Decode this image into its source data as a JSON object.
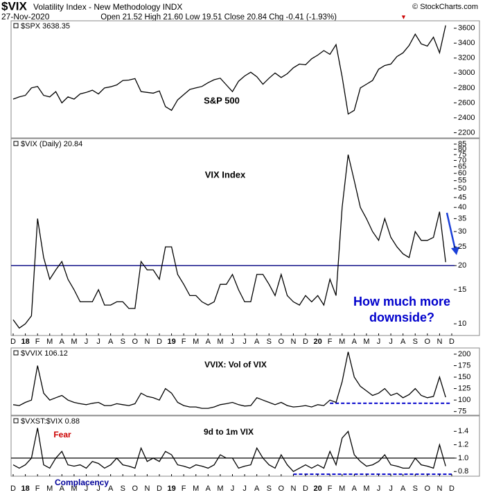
{
  "header": {
    "symbol": "$VIX",
    "name": "Volatility Index - New Methodology INDX",
    "date": "27-Nov-2020",
    "quote": "Open 21.52  High 21.60  Low 19.51  Close 20.84  Chg -0.41 (-1.93%)",
    "source": "© StockCharts.com"
  },
  "chart_data": [
    {
      "type": "line",
      "title": "$SPX 3638.35",
      "color": "#000000",
      "log": false,
      "show_x_labels": false,
      "annotations": [
        {
          "text": "S&P 500",
          "color": "#000000"
        }
      ],
      "categories": [
        "D",
        null,
        "18",
        null,
        "F",
        null,
        "M",
        null,
        "A",
        null,
        "M",
        null,
        "J",
        null,
        "J",
        null,
        "A",
        null,
        "S",
        null,
        "O",
        null,
        "N",
        null,
        "D",
        null,
        "19",
        null,
        "F",
        null,
        "M",
        null,
        "A",
        null,
        "M",
        null,
        "J",
        null,
        "J",
        null,
        "A",
        null,
        "S",
        null,
        "O",
        null,
        "N",
        null,
        "D",
        null,
        "20",
        null,
        "F",
        null,
        "M",
        null,
        "A",
        null,
        "M",
        null,
        "J",
        null,
        "J",
        null,
        "A",
        null,
        "S",
        null,
        "O",
        null,
        "N",
        null,
        "D"
      ],
      "values": [
        2650,
        2680,
        2700,
        2800,
        2820,
        2700,
        2680,
        2750,
        2600,
        2680,
        2650,
        2720,
        2740,
        2770,
        2720,
        2800,
        2815,
        2840,
        2900,
        2905,
        2925,
        2750,
        2740,
        2730,
        2760,
        2550,
        2500,
        2640,
        2710,
        2780,
        2800,
        2820,
        2870,
        2910,
        2930,
        2840,
        2750,
        2890,
        2960,
        3010,
        2950,
        2850,
        2930,
        3000,
        2940,
        2990,
        3070,
        3120,
        3110,
        3190,
        3240,
        3300,
        3250,
        3380,
        2950,
        2450,
        2500,
        2800,
        2850,
        2900,
        3050,
        3100,
        3120,
        3220,
        3270,
        3370,
        3520,
        3390,
        3360,
        3480,
        3270,
        3638.35,
        null
      ],
      "ylim": [
        2130,
        3690
      ],
      "yticks": [
        2200,
        2400,
        2600,
        2800,
        3000,
        3200,
        3400,
        3600
      ],
      "reference_lines": []
    },
    {
      "type": "line",
      "title": "$VIX (Daily) 20.84",
      "color": "#000000",
      "log": true,
      "show_x_labels": true,
      "annotations": [
        {
          "text": "VIX Index",
          "color": "#000000"
        },
        {
          "text": "How much more",
          "color": "#0000cc"
        },
        {
          "text": "downside?",
          "color": "#0000cc"
        }
      ],
      "categories": [
        "D",
        null,
        "18",
        null,
        "F",
        null,
        "M",
        null,
        "A",
        null,
        "M",
        null,
        "J",
        null,
        "J",
        null,
        "A",
        null,
        "S",
        null,
        "O",
        null,
        "N",
        null,
        "D",
        null,
        "19",
        null,
        "F",
        null,
        "M",
        null,
        "A",
        null,
        "M",
        null,
        "J",
        null,
        "J",
        null,
        "A",
        null,
        "S",
        null,
        "O",
        null,
        "N",
        null,
        "D",
        null,
        "20",
        null,
        "F",
        null,
        "M",
        null,
        "A",
        null,
        "M",
        null,
        "J",
        null,
        "J",
        null,
        "A",
        null,
        "S",
        null,
        "O",
        null,
        "N",
        null,
        "D"
      ],
      "values": [
        10.5,
        9.5,
        10,
        11,
        35,
        22,
        17,
        19,
        21,
        17,
        15,
        13,
        13,
        13,
        15,
        12.5,
        12.5,
        13,
        13,
        12,
        12,
        21,
        19,
        19,
        17,
        25,
        25,
        18,
        16,
        14,
        14,
        13,
        12.5,
        13,
        16,
        16,
        18,
        15,
        13,
        13,
        18,
        18,
        16,
        14,
        18,
        14,
        13,
        12.5,
        14,
        13,
        14,
        12.5,
        17,
        14,
        40,
        75,
        55,
        40,
        35,
        30,
        27,
        35,
        28,
        25,
        23,
        22,
        30,
        27,
        27,
        28,
        38,
        20.84,
        null
      ],
      "ylim": [
        8.7,
        90
      ],
      "yticks": [
        10,
        15,
        20,
        25,
        30,
        35,
        40,
        45,
        50,
        55,
        60,
        65,
        70,
        75,
        80,
        85
      ],
      "reference_lines": [
        {
          "value": 20,
          "color": "#000080",
          "style": "solid",
          "start": 0
        }
      ]
    },
    {
      "type": "line",
      "title": "$VVIX 106.12",
      "color": "#000000",
      "log": false,
      "show_x_labels": false,
      "annotations": [
        {
          "text": "VVIX: Vol of VIX",
          "color": "#000000"
        }
      ],
      "categories": [
        "D",
        null,
        "18",
        null,
        "F",
        null,
        "M",
        null,
        "A",
        null,
        "M",
        null,
        "J",
        null,
        "J",
        null,
        "A",
        null,
        "S",
        null,
        "O",
        null,
        "N",
        null,
        "D",
        null,
        "19",
        null,
        "F",
        null,
        "M",
        null,
        "A",
        null,
        "M",
        null,
        "J",
        null,
        "J",
        null,
        "A",
        null,
        "S",
        null,
        "O",
        null,
        "N",
        null,
        "D",
        null,
        "20",
        null,
        "F",
        null,
        "M",
        null,
        "A",
        null,
        "M",
        null,
        "J",
        null,
        "J",
        null,
        "A",
        null,
        "S",
        null,
        "O",
        null,
        "N",
        null,
        "D"
      ],
      "values": [
        90,
        88,
        95,
        100,
        175,
        115,
        100,
        105,
        110,
        100,
        95,
        92,
        90,
        93,
        95,
        88,
        88,
        92,
        90,
        88,
        92,
        115,
        108,
        105,
        100,
        125,
        115,
        95,
        88,
        85,
        85,
        82,
        82,
        85,
        90,
        92,
        95,
        90,
        87,
        88,
        105,
        100,
        95,
        90,
        95,
        88,
        85,
        86,
        88,
        85,
        90,
        88,
        100,
        95,
        140,
        205,
        150,
        130,
        120,
        110,
        115,
        125,
        110,
        115,
        105,
        112,
        125,
        110,
        105,
        108,
        150,
        106.12,
        null
      ],
      "ylim": [
        67,
        212
      ],
      "yticks": [
        75,
        100,
        125,
        150,
        175,
        200
      ],
      "reference_lines": [
        {
          "value": 93,
          "color": "#0000cc",
          "style": "dashed",
          "start": 52
        }
      ]
    },
    {
      "type": "line",
      "title": "$VXST:$VIX 0.88",
      "color": "#000000",
      "log": false,
      "show_x_labels": true,
      "annotations": [
        {
          "text": "Fear",
          "color": "#cc0000"
        },
        {
          "text": "9d to 1m VIX",
          "color": "#000000"
        },
        {
          "text": "Complacency",
          "color": "#000099"
        }
      ],
      "categories": [
        "D",
        null,
        "18",
        null,
        "F",
        null,
        "M",
        null,
        "A",
        null,
        "M",
        null,
        "J",
        null,
        "J",
        null,
        "A",
        null,
        "S",
        null,
        "O",
        null,
        "N",
        null,
        "D",
        null,
        "19",
        null,
        "F",
        null,
        "M",
        null,
        "A",
        null,
        "M",
        null,
        "J",
        null,
        "J",
        null,
        "A",
        null,
        "S",
        null,
        "O",
        null,
        "N",
        null,
        "D",
        null,
        "20",
        null,
        "F",
        null,
        "M",
        null,
        "A",
        null,
        "M",
        null,
        "J",
        null,
        "J",
        null,
        "A",
        null,
        "S",
        null,
        "O",
        null,
        "N",
        null,
        "D"
      ],
      "values": [
        0.9,
        0.85,
        0.9,
        1.0,
        1.45,
        0.9,
        0.85,
        1.0,
        1.1,
        0.9,
        0.88,
        0.9,
        0.85,
        0.95,
        0.92,
        0.85,
        0.9,
        1.0,
        0.9,
        0.88,
        0.85,
        1.15,
        0.95,
        1.0,
        0.95,
        1.1,
        1.05,
        0.9,
        0.88,
        0.85,
        0.9,
        0.88,
        0.85,
        0.9,
        1.05,
        1.0,
        1.0,
        0.85,
        0.88,
        0.9,
        1.15,
        1.0,
        0.9,
        0.85,
        1.05,
        0.9,
        0.8,
        0.85,
        0.9,
        0.85,
        0.9,
        0.85,
        1.1,
        0.9,
        1.3,
        1.4,
        1.05,
        0.95,
        0.88,
        0.9,
        0.95,
        1.05,
        0.9,
        0.88,
        0.85,
        0.85,
        1.0,
        0.9,
        0.88,
        0.85,
        1.2,
        0.88,
        null
      ],
      "ylim": [
        0.73,
        1.62
      ],
      "yticks": [
        0.8,
        {
          "value": 1.0,
          "label": "1.0"
        },
        1.2,
        1.4
      ],
      "reference_lines": [
        {
          "value": 1.0,
          "color": "#000000",
          "style": "solid",
          "start": 0
        },
        {
          "value": 0.76,
          "color": "#0000cc",
          "style": "dashed",
          "start": 46
        }
      ]
    }
  ]
}
